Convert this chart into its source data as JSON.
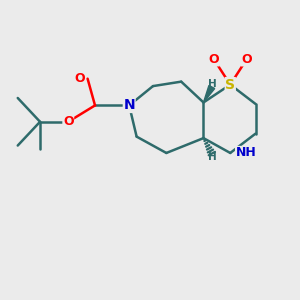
{
  "bg_color": "#ebebeb",
  "atom_colors": {
    "S": "#c8b400",
    "O": "#ff0000",
    "N": "#0000cc",
    "C": "#2e6b6b",
    "H": "#2e6b6b"
  },
  "bond_color": "#2e6b6b",
  "bond_width": 1.8,
  "figsize": [
    3.0,
    3.0
  ],
  "dpi": 100
}
